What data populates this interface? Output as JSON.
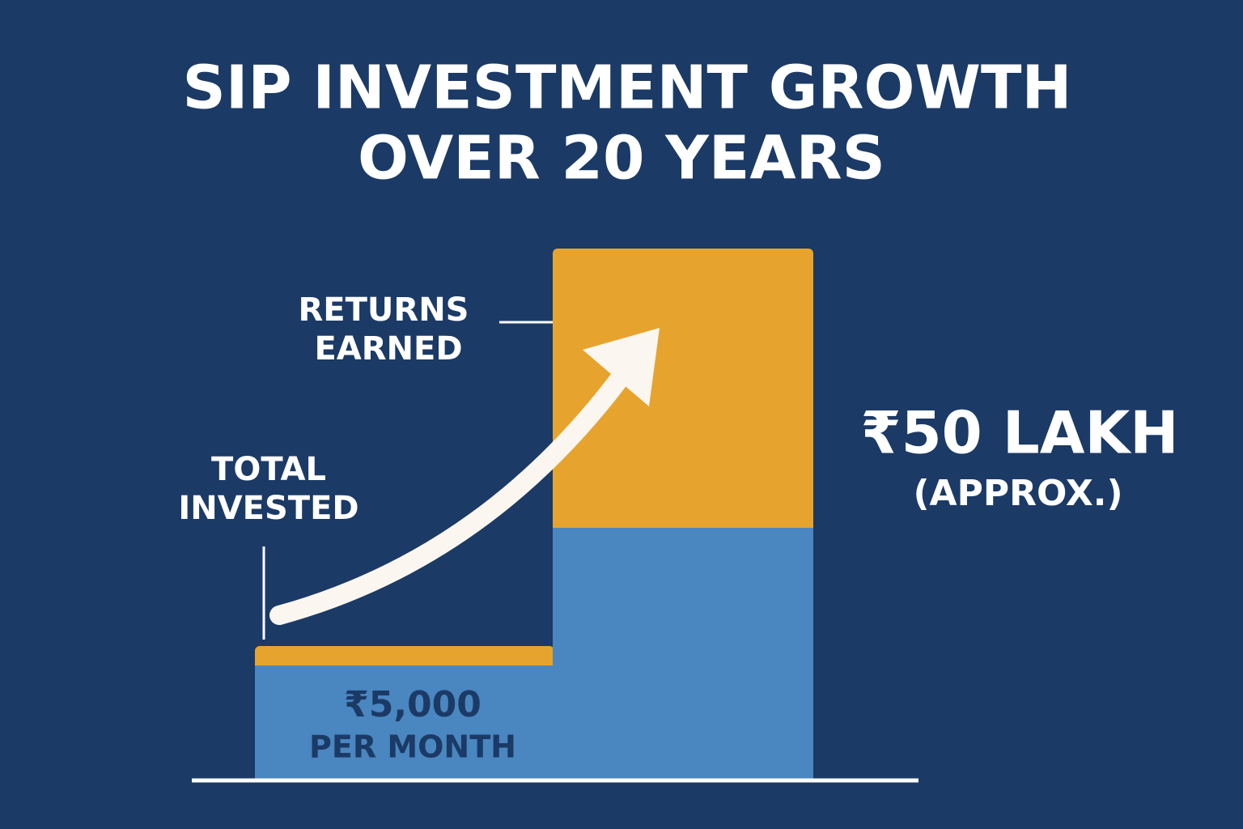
{
  "header": {
    "title": [
      "SIP INVESTMENT GROWTH",
      "OVER 20 YEARS"
    ]
  },
  "labels": {
    "returns": [
      "RETURNS",
      "EARNED"
    ],
    "invested": [
      "TOTAL",
      "INVESTED"
    ]
  },
  "total": {
    "amount": "₹50 LAKH",
    "note": "(APPROX.)"
  },
  "monthly": {
    "amount": "₹5,000",
    "note": "PER MONTH"
  }
}
